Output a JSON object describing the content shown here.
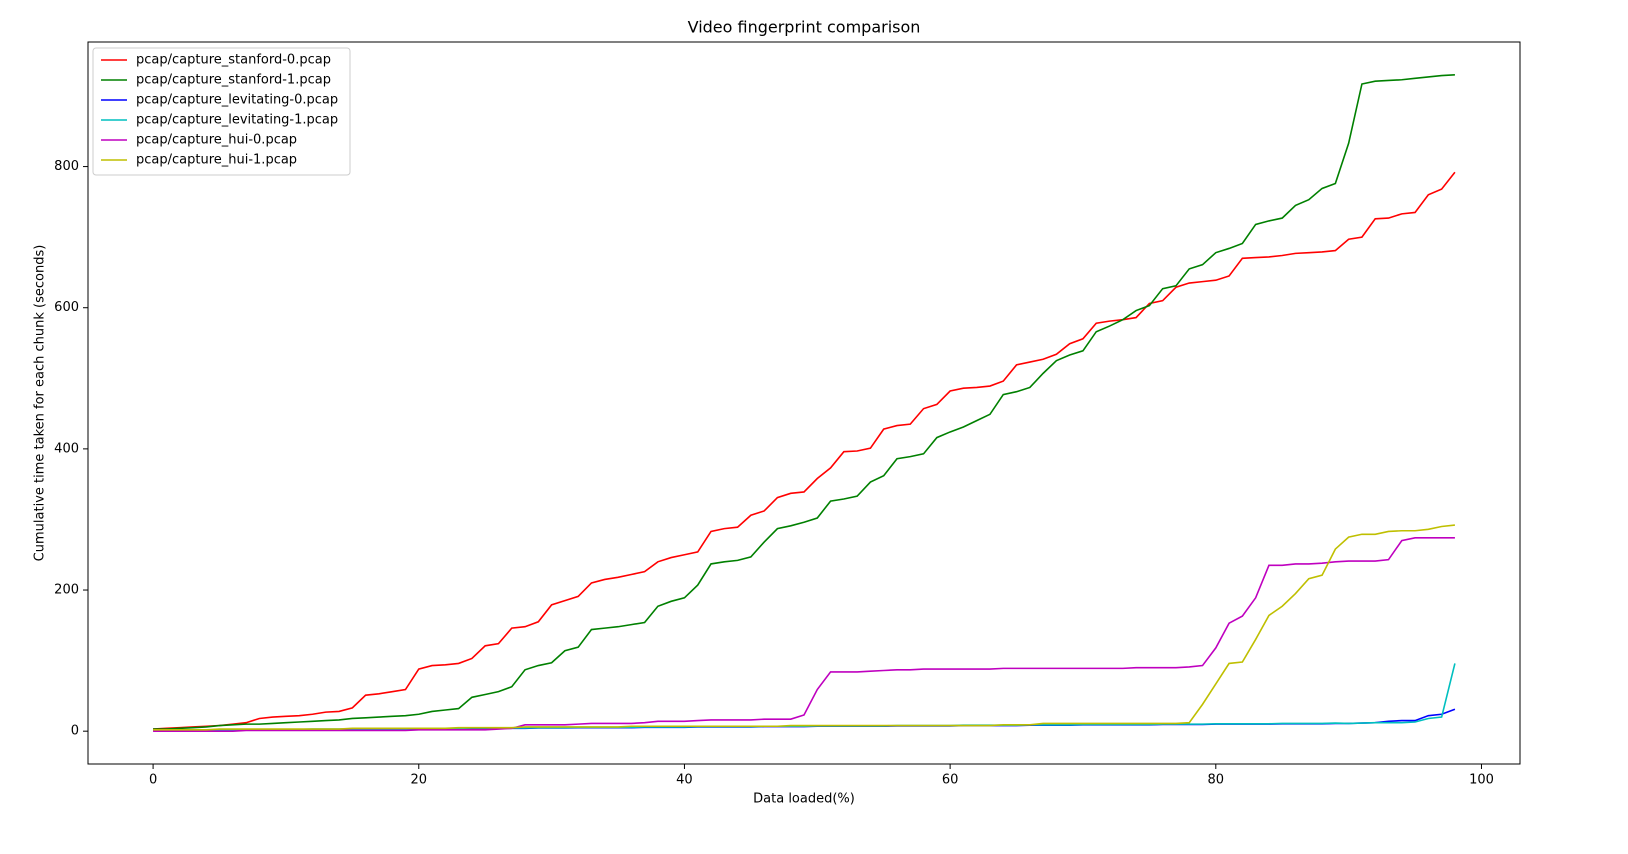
{
  "chart_data": {
    "type": "line",
    "title": "Video fingerprint comparison",
    "x_label": "Data loaded(%)",
    "y_label": "Cumulative time taken for each chunk (seconds)",
    "x": [
      0,
      1,
      2,
      3,
      4,
      5,
      6,
      7,
      8,
      9,
      10,
      11,
      12,
      13,
      14,
      15,
      16,
      17,
      18,
      19,
      20,
      21,
      22,
      23,
      24,
      25,
      26,
      27,
      28,
      29,
      30,
      31,
      32,
      33,
      34,
      35,
      36,
      37,
      38,
      39,
      40,
      41,
      42,
      43,
      44,
      45,
      46,
      47,
      48,
      49,
      50,
      51,
      52,
      53,
      54,
      55,
      56,
      57,
      58,
      59,
      60,
      61,
      62,
      63,
      64,
      65,
      66,
      67,
      68,
      69,
      70,
      71,
      72,
      73,
      74,
      75,
      76,
      77,
      78,
      79,
      80,
      81,
      82,
      83,
      84,
      85,
      86,
      87,
      88,
      89,
      90,
      91,
      92,
      93,
      94,
      95,
      96,
      97,
      98
    ],
    "xlim": [
      -4.9,
      102.9
    ],
    "xticks": [
      0,
      20,
      40,
      60,
      80,
      100
    ],
    "ylim": [
      -46.5,
      976.5
    ],
    "yticks": [
      0,
      200,
      400,
      600,
      800
    ],
    "legend": "upper left",
    "series": [
      {
        "name": "pcap/capture_stanford-0.pcap",
        "color": "#ff0000",
        "values": [
          3,
          4,
          5,
          6,
          7,
          8,
          10,
          12,
          18,
          20,
          21,
          22,
          24,
          27,
          28,
          33,
          51,
          53,
          56,
          59,
          88,
          93,
          94,
          96,
          103,
          121,
          124,
          146,
          148,
          155,
          179,
          185,
          191,
          210,
          215,
          218,
          222,
          226,
          240,
          246,
          250,
          254,
          283,
          287,
          289,
          306,
          312,
          331,
          337,
          339,
          358,
          373,
          396,
          397,
          401,
          428,
          433,
          435,
          457,
          463,
          482,
          486,
          487,
          489,
          496,
          519,
          523,
          527,
          534,
          549,
          556,
          578,
          581,
          583,
          586,
          606,
          610,
          629,
          635,
          637,
          639,
          645,
          670,
          671,
          672,
          674,
          677,
          678,
          679,
          681,
          697,
          700,
          726,
          727,
          733,
          735,
          760,
          768,
          792
        ]
      },
      {
        "name": "pcap/capture_stanford-1.pcap",
        "color": "#008000",
        "values": [
          3,
          3,
          4,
          5,
          6,
          8,
          9,
          10,
          10,
          11,
          12,
          13,
          14,
          15,
          16,
          18,
          19,
          20,
          21,
          22,
          24,
          28,
          30,
          32,
          48,
          52,
          56,
          63,
          87,
          93,
          97,
          114,
          119,
          144,
          146,
          148,
          151,
          154,
          177,
          184,
          189,
          207,
          237,
          240,
          242,
          247,
          268,
          287,
          291,
          296,
          302,
          326,
          329,
          333,
          353,
          362,
          386,
          389,
          393,
          416,
          424,
          431,
          440,
          449,
          477,
          481,
          487,
          507,
          525,
          533,
          539,
          566,
          574,
          583,
          596,
          603,
          627,
          631,
          655,
          661,
          678,
          684,
          691,
          718,
          723,
          727,
          745,
          753,
          769,
          776,
          833,
          917,
          921,
          922,
          923,
          925,
          927,
          929,
          930
        ]
      },
      {
        "name": "pcap/capture_levitating-0.pcap",
        "color": "#0000ff",
        "values": [
          1,
          1,
          1,
          1,
          1.5,
          1.5,
          1.5,
          2,
          2,
          2,
          2,
          2,
          2.5,
          2.5,
          2.5,
          3,
          3,
          3,
          3,
          3,
          3.5,
          3.5,
          3.5,
          3.5,
          4,
          4,
          4,
          4,
          4,
          4.5,
          4.5,
          4.5,
          5,
          5,
          5,
          5,
          5,
          5.5,
          5.5,
          5.5,
          5.5,
          6,
          6,
          6,
          6,
          6,
          6.5,
          6.5,
          6.5,
          6.5,
          7,
          7,
          7,
          7,
          7,
          7,
          7.5,
          7.5,
          7.5,
          7.5,
          7.5,
          8,
          8,
          8,
          8,
          8,
          8.5,
          8.5,
          8.5,
          8.5,
          9,
          9,
          9,
          9,
          9,
          9,
          9.5,
          9.5,
          9.5,
          9.5,
          10,
          10,
          10,
          10,
          10,
          10.5,
          10.5,
          10.5,
          10.5,
          11,
          11,
          11.5,
          12,
          14,
          15,
          15,
          22,
          24,
          31
        ]
      },
      {
        "name": "pcap/capture_levitating-1.pcap",
        "color": "#00bfbf",
        "values": [
          1.5,
          1.5,
          1.5,
          1.5,
          2,
          2,
          2,
          2.5,
          2.5,
          2.5,
          2.5,
          2.5,
          3,
          3,
          3,
          3.5,
          3.5,
          3.5,
          3.5,
          3.5,
          4,
          4,
          4,
          4,
          4.5,
          4.5,
          4.5,
          4.5,
          4.5,
          5,
          5,
          5,
          5.5,
          5.5,
          5.5,
          5.5,
          5.5,
          6,
          6,
          6,
          6,
          6.5,
          6.5,
          6.5,
          6.5,
          6.5,
          7,
          7,
          7,
          7,
          7.5,
          7.5,
          7.5,
          7.5,
          7.5,
          7.5,
          8,
          8,
          8,
          8,
          8,
          8.5,
          8.5,
          8.5,
          8.5,
          8.5,
          9,
          9,
          9,
          9,
          9.5,
          9.5,
          9.5,
          9.5,
          9.5,
          9.5,
          10,
          10,
          10,
          10,
          10.5,
          10.5,
          10.5,
          10.5,
          10.5,
          11,
          11,
          11,
          11,
          11.5,
          11,
          11.5,
          12,
          12,
          12,
          13,
          18,
          20,
          96
        ]
      },
      {
        "name": "pcap/capture_hui-0.pcap",
        "color": "#bf00bf",
        "values": [
          0,
          0,
          0,
          0,
          0,
          0,
          0,
          1,
          1,
          1,
          1,
          1,
          1,
          1,
          1,
          1,
          1,
          1,
          1,
          1,
          2,
          2,
          2,
          2,
          2,
          2,
          3,
          4,
          9,
          9,
          9,
          9,
          10,
          11,
          11,
          11,
          11,
          12,
          14,
          14,
          14,
          15,
          16,
          16,
          16,
          16,
          17,
          17,
          17,
          23,
          59,
          84,
          84,
          84,
          85,
          86,
          87,
          87,
          88,
          88,
          88,
          88,
          88,
          88,
          89,
          89,
          89,
          89,
          89,
          89,
          89,
          89,
          89,
          89,
          90,
          90,
          90,
          90,
          91,
          93,
          118,
          153,
          163,
          189,
          235,
          235,
          237,
          237,
          238,
          240,
          241,
          241,
          241,
          243,
          270,
          274,
          274,
          274,
          274
        ]
      },
      {
        "name": "pcap/capture_hui-1.pcap",
        "color": "#bfbf00",
        "values": [
          2,
          2,
          2,
          2,
          2,
          3,
          3,
          3,
          3,
          3,
          3,
          3,
          3,
          3,
          3,
          4,
          4,
          4,
          4,
          4,
          4,
          4,
          4,
          5,
          5,
          5,
          5,
          5,
          6,
          6,
          6,
          6,
          6,
          6,
          6,
          6,
          7,
          7,
          7,
          7,
          7,
          7,
          7,
          7,
          7,
          7,
          7,
          7,
          8,
          8,
          8,
          8,
          8,
          8,
          8,
          8,
          8,
          8,
          8,
          8,
          8,
          8,
          8,
          8,
          9,
          9,
          9,
          11,
          11,
          11,
          11,
          11,
          11,
          11,
          11,
          11,
          11,
          11,
          12,
          38,
          67,
          96,
          98,
          130,
          164,
          177,
          195,
          216,
          221,
          258,
          275,
          279,
          279,
          283,
          284,
          284,
          286,
          290,
          292
        ]
      }
    ]
  }
}
